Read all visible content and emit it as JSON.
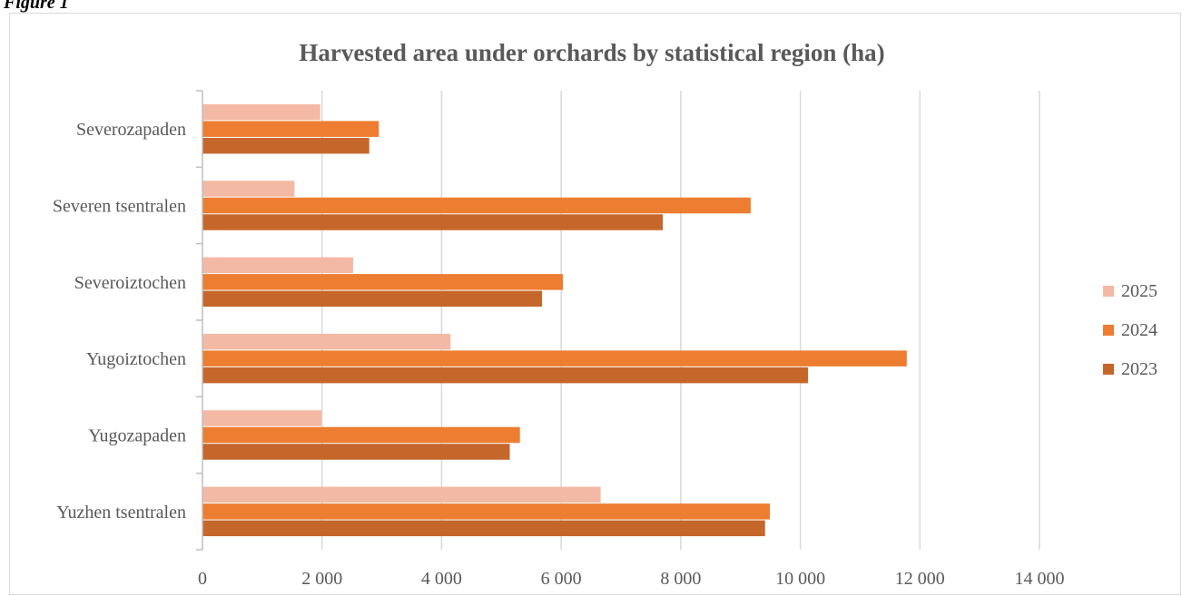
{
  "figure_label": "Figure 1",
  "chart_data": {
    "type": "bar",
    "orientation": "horizontal",
    "title": "Harvested area under orchards by statistical region (ha)",
    "xlabel": "",
    "ylabel": "",
    "categories": [
      "Severozapaden",
      "Severen tsentralen",
      "Severoiztochen",
      "Yugoiztochen",
      "Yugozapaden",
      "Yuzhen tsentralen"
    ],
    "series": [
      {
        "name": "2025",
        "color": "#F4B9A4",
        "values": [
          1970,
          1540,
          2520,
          4150,
          1990,
          6660
        ]
      },
      {
        "name": "2024",
        "color": "#ED7D31",
        "values": [
          2950,
          9170,
          6030,
          11780,
          5310,
          9490
        ]
      },
      {
        "name": "2023",
        "color": "#C5672B",
        "values": [
          2790,
          7700,
          5680,
          10130,
          5140,
          9410
        ]
      }
    ],
    "xlim": [
      0,
      14000
    ],
    "xticks": [
      0,
      2000,
      4000,
      6000,
      8000,
      10000,
      12000,
      14000
    ],
    "xtick_labels": [
      "0",
      "2 000",
      "4 000",
      "6 000",
      "8 000",
      "10 000",
      "12 000",
      "14 000"
    ],
    "grid": true,
    "legend_position": "right"
  }
}
